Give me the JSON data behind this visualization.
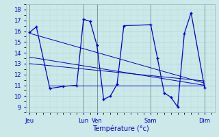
{
  "bg_color": "#cce8e8",
  "grid_major_color": "#aad4d4",
  "grid_minor_color": "#bbdddd",
  "line_color": "#0000cc",
  "xlabel": "Température (°c)",
  "ylim": [
    8.5,
    18.5
  ],
  "yticks": [
    9,
    10,
    11,
    12,
    13,
    14,
    15,
    16,
    17,
    18
  ],
  "x_tick_positions": [
    0,
    8,
    10,
    18,
    26
  ],
  "x_tick_labels": [
    "Jeu",
    "Lun",
    "Ven",
    "Sam",
    "Dim"
  ],
  "xlim": [
    -0.5,
    27.5
  ],
  "main_x": [
    0,
    1,
    3,
    5,
    7,
    8,
    9,
    10,
    11,
    12,
    13,
    14,
    18,
    19,
    20,
    21,
    22,
    23,
    24,
    26
  ],
  "main_y": [
    15.9,
    16.4,
    10.7,
    10.9,
    11.0,
    17.1,
    16.9,
    14.7,
    9.7,
    10.0,
    11.1,
    16.5,
    16.6,
    13.5,
    10.3,
    9.9,
    9.0,
    15.8,
    17.7,
    10.8
  ],
  "trend_lines": [
    {
      "x": [
        0,
        26
      ],
      "y": [
        15.8,
        11.2
      ]
    },
    {
      "x": [
        0,
        26
      ],
      "y": [
        13.6,
        11.0
      ]
    },
    {
      "x": [
        0,
        26
      ],
      "y": [
        13.0,
        11.4
      ]
    },
    {
      "x": [
        3,
        26
      ],
      "y": [
        11.0,
        11.0
      ]
    }
  ],
  "vlines": [
    0,
    8,
    10,
    18,
    26
  ]
}
